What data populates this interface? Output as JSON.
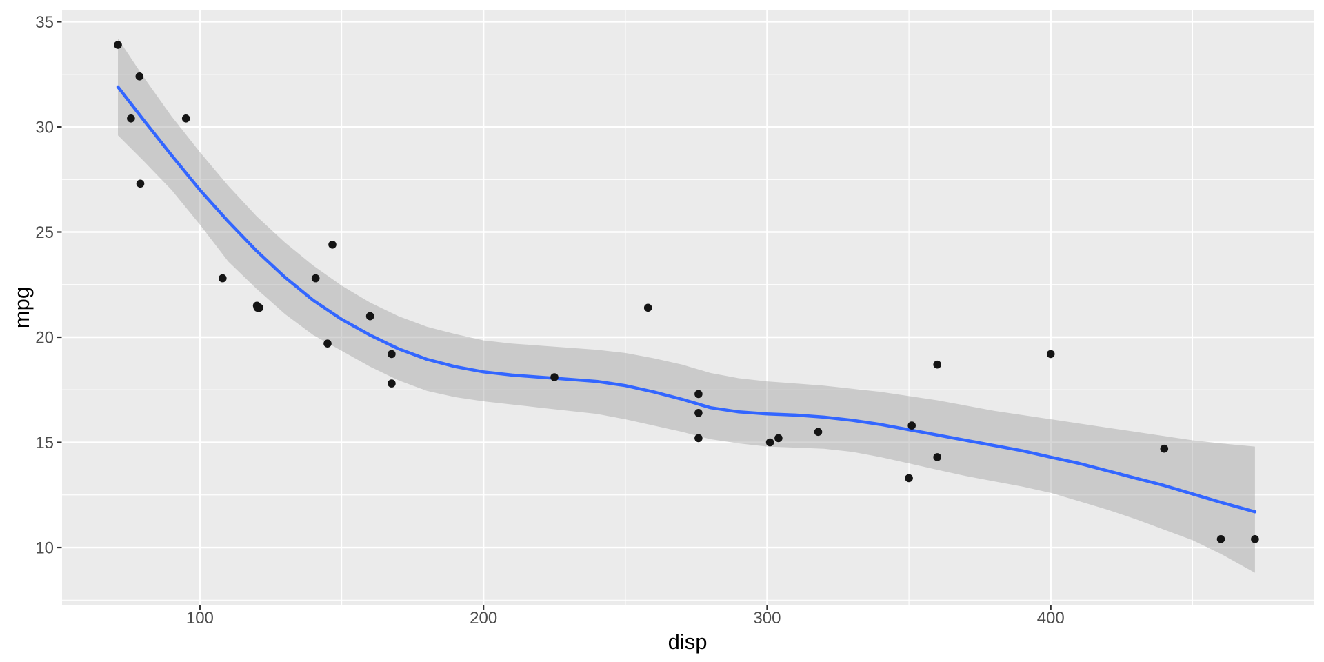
{
  "figure": {
    "background_color": "#FFFFFF",
    "panel_color": "#EBEBEB",
    "grid_color": "#FFFFFF",
    "axis_text_color": "#4D4D4D",
    "axis_title_color": "#000000",
    "tick_mark_color": "#333333"
  },
  "chart_data": {
    "type": "scatter",
    "title": "",
    "xlabel": "disp",
    "ylabel": "mpg",
    "x_domain": [
      51.4,
      492.7
    ],
    "y_domain": [
      7.28,
      35.54
    ],
    "x_ticks_major": [
      100,
      200,
      300,
      400
    ],
    "x_ticks_minor": [
      150,
      250,
      350,
      450
    ],
    "y_ticks_major": [
      10,
      15,
      20,
      25,
      30,
      35
    ],
    "y_ticks_minor": [
      7.5,
      12.5,
      17.5,
      22.5,
      27.5,
      32.5
    ],
    "grid": "major-and-minor",
    "legend_position": "none",
    "point_color": "#141414",
    "point_radius": 5.8,
    "points": [
      [
        160.0,
        21.0
      ],
      [
        160.0,
        21.0
      ],
      [
        108.0,
        22.8
      ],
      [
        258.0,
        21.4
      ],
      [
        360.0,
        18.7
      ],
      [
        225.0,
        18.1
      ],
      [
        360.0,
        14.3
      ],
      [
        146.7,
        24.4
      ],
      [
        140.8,
        22.8
      ],
      [
        167.6,
        19.2
      ],
      [
        167.6,
        17.8
      ],
      [
        275.8,
        16.4
      ],
      [
        275.8,
        17.3
      ],
      [
        275.8,
        15.2
      ],
      [
        472.0,
        10.4
      ],
      [
        460.0,
        10.4
      ],
      [
        440.0,
        14.7
      ],
      [
        78.7,
        32.4
      ],
      [
        75.7,
        30.4
      ],
      [
        71.1,
        33.9
      ],
      [
        120.1,
        21.5
      ],
      [
        318.0,
        15.5
      ],
      [
        304.0,
        15.2
      ],
      [
        350.0,
        13.3
      ],
      [
        400.0,
        19.2
      ],
      [
        79.0,
        27.3
      ],
      [
        120.3,
        21.4
      ],
      [
        95.1,
        30.4
      ],
      [
        351.0,
        15.8
      ],
      [
        145.0,
        19.7
      ],
      [
        301.0,
        15.0
      ],
      [
        121.0,
        21.4
      ]
    ],
    "smooth_line": {
      "method": "loess",
      "color": "#3366FF",
      "width": 4.5,
      "points": [
        [
          71.1,
          31.9
        ],
        [
          80,
          30.35
        ],
        [
          90,
          28.65
        ],
        [
          100,
          27.0
        ],
        [
          110,
          25.5
        ],
        [
          120,
          24.1
        ],
        [
          130,
          22.85
        ],
        [
          140,
          21.75
        ],
        [
          150,
          20.85
        ],
        [
          160,
          20.1
        ],
        [
          170,
          19.45
        ],
        [
          180,
          18.95
        ],
        [
          190,
          18.6
        ],
        [
          200,
          18.35
        ],
        [
          210,
          18.2
        ],
        [
          220,
          18.1
        ],
        [
          230,
          18.0
        ],
        [
          240,
          17.9
        ],
        [
          250,
          17.7
        ],
        [
          260,
          17.4
        ],
        [
          270,
          17.05
        ],
        [
          280,
          16.65
        ],
        [
          290,
          16.45
        ],
        [
          300,
          16.35
        ],
        [
          310,
          16.3
        ],
        [
          320,
          16.2
        ],
        [
          330,
          16.05
        ],
        [
          340,
          15.85
        ],
        [
          350,
          15.6
        ],
        [
          360,
          15.35
        ],
        [
          370,
          15.1
        ],
        [
          380,
          14.85
        ],
        [
          390,
          14.6
        ],
        [
          400,
          14.3
        ],
        [
          410,
          14.0
        ],
        [
          420,
          13.65
        ],
        [
          430,
          13.3
        ],
        [
          440,
          12.95
        ],
        [
          450,
          12.55
        ],
        [
          460,
          12.15
        ],
        [
          472,
          11.7
        ]
      ]
    },
    "confidence_ribbon": {
      "fill": "#999999",
      "opacity": 0.4,
      "points": [
        [
          71.1,
          29.6,
          34.2
        ],
        [
          80,
          28.4,
          32.4
        ],
        [
          90,
          27.0,
          30.5
        ],
        [
          100,
          25.35,
          28.8
        ],
        [
          110,
          23.6,
          27.2
        ],
        [
          120,
          22.3,
          25.75
        ],
        [
          130,
          21.1,
          24.5
        ],
        [
          140,
          20.1,
          23.4
        ],
        [
          150,
          19.35,
          22.45
        ],
        [
          160,
          18.6,
          21.65
        ],
        [
          170,
          17.95,
          21.0
        ],
        [
          180,
          17.45,
          20.5
        ],
        [
          190,
          17.15,
          20.15
        ],
        [
          200,
          16.95,
          19.85
        ],
        [
          210,
          16.8,
          19.7
        ],
        [
          220,
          16.65,
          19.6
        ],
        [
          230,
          16.5,
          19.5
        ],
        [
          240,
          16.35,
          19.4
        ],
        [
          250,
          16.1,
          19.25
        ],
        [
          260,
          15.8,
          19.0
        ],
        [
          270,
          15.5,
          18.7
        ],
        [
          280,
          15.15,
          18.3
        ],
        [
          290,
          14.95,
          18.05
        ],
        [
          300,
          14.8,
          17.9
        ],
        [
          310,
          14.75,
          17.8
        ],
        [
          320,
          14.7,
          17.7
        ],
        [
          330,
          14.55,
          17.55
        ],
        [
          340,
          14.3,
          17.4
        ],
        [
          350,
          14.0,
          17.2
        ],
        [
          360,
          13.7,
          17.0
        ],
        [
          370,
          13.4,
          16.75
        ],
        [
          380,
          13.15,
          16.5
        ],
        [
          390,
          12.9,
          16.3
        ],
        [
          400,
          12.6,
          16.1
        ],
        [
          410,
          12.2,
          15.9
        ],
        [
          420,
          11.8,
          15.7
        ],
        [
          430,
          11.35,
          15.5
        ],
        [
          440,
          10.85,
          15.3
        ],
        [
          450,
          10.35,
          15.1
        ],
        [
          460,
          9.7,
          14.95
        ],
        [
          472,
          8.8,
          14.8
        ]
      ]
    }
  }
}
